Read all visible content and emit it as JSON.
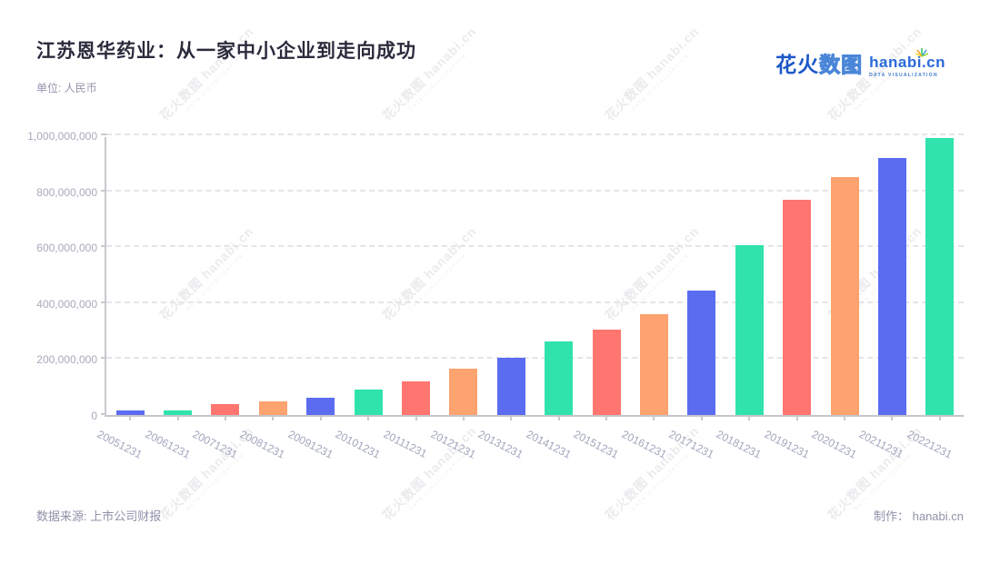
{
  "header": {
    "title": "江苏恩华药业：从一家中小企业到走向成功",
    "subtitle": "单位: 人民币"
  },
  "logo": {
    "cn_solid": "花火",
    "cn_outline": "数图",
    "en": "hanabi.cn",
    "tagline": "DATA VISUALIZATION",
    "brand_blue": "#1e58c8",
    "accent_blue": "#2a6ad9"
  },
  "watermark": {
    "text": "花火数图 hanabi.cn",
    "subtext": "DATA VISUALIZATION"
  },
  "footer": {
    "source": "数据来源: 上市公司财报",
    "credit": "制作： hanabi.cn"
  },
  "chart_data": {
    "type": "bar",
    "title": "江苏恩华药业：从一家中小企业到走向成功",
    "unit_label": "单位: 人民币",
    "categories": [
      "20051231",
      "20061231",
      "20071231",
      "20081231",
      "20091231",
      "20101231",
      "20111231",
      "20121231",
      "20131231",
      "20141231",
      "20151231",
      "20161231",
      "20171231",
      "20181231",
      "20191231",
      "20201231",
      "20211231",
      "20221231"
    ],
    "values": [
      17000000,
      15000000,
      38000000,
      49000000,
      63000000,
      90000000,
      121000000,
      166000000,
      206000000,
      263000000,
      304000000,
      360000000,
      446000000,
      608000000,
      770000000,
      851000000,
      918000000,
      991000000
    ],
    "palette": [
      "#5b6cf0",
      "#30e3ac",
      "#ff7670",
      "#fca36f"
    ],
    "xlabel": "",
    "ylabel": "",
    "ylim": [
      0,
      1000000000
    ],
    "y_ticks": [
      0,
      200000000,
      400000000,
      600000000,
      800000000,
      1000000000
    ],
    "grid": "dashed-horizontal",
    "legend": "none",
    "x_label_rotation_deg": 27
  }
}
